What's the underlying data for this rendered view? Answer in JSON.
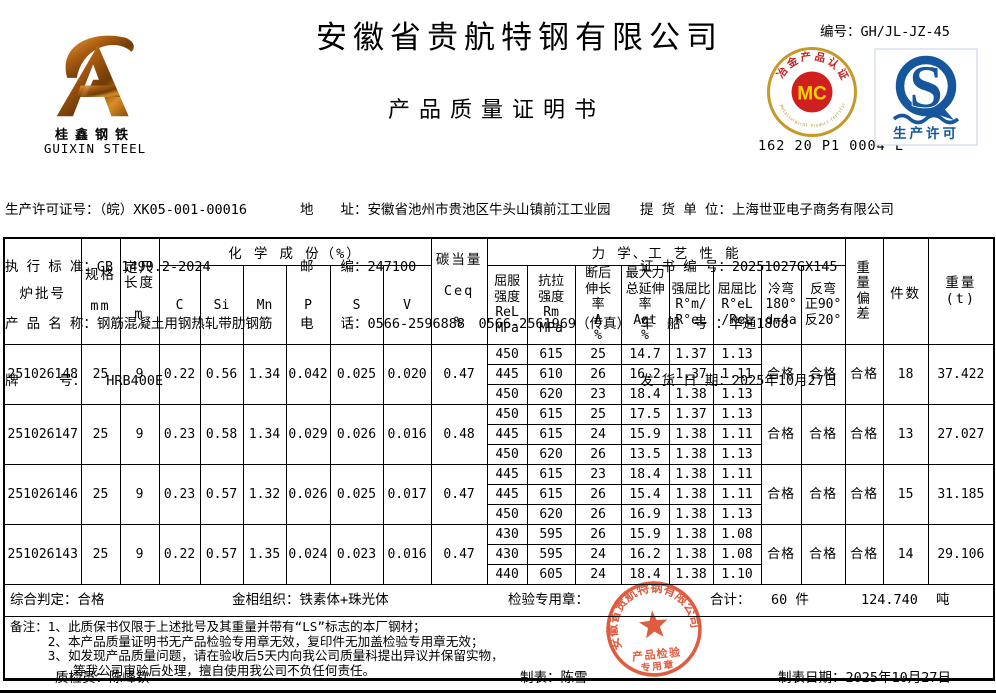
{
  "doc": {
    "company": "安徽省贵航特钢有限公司",
    "title": "产品质量证明书",
    "no_label": "编号：",
    "no_value": "GH/JL-JZ-45"
  },
  "logo": {
    "cn": "桂鑫钢铁",
    "en": "GUIXIN STEEL"
  },
  "mc_badge": {
    "letters": "MC",
    "top_text": "冶金产品认证",
    "bottom_text": "Metallurgical Product Certification",
    "serial": "162 20 P1 0004 L",
    "ring_color": "#c59a28",
    "center_color": "#cf1f1f",
    "letters_color": "#ffd300"
  },
  "qs_badge": {
    "letter": "S",
    "label": "生产许可",
    "color": "#15569c"
  },
  "info": {
    "col1": [
      "生产许可证号：（皖）XK05-001-00016",
      "执 行 标 准：GB 1499.2-2024",
      "产 品 名 称：钢筋混凝土用钢热轧带肋钢筋",
      "牌　　　号：　　HRB400E"
    ],
    "col2": [
      "地　　址：安徽省池州市贵池区牛头山镇前江工业园",
      "邮　　编：247100",
      "电　　话：0566-2596888　0566-2561969（传真）"
    ],
    "col3": [
      "提 货 单 位：上海世亚电子商务有限公司",
      "证 书 编 号：20251027GX145",
      "车　船　号 ：华通1808",
      "发 货 日 期：2025年10月27日"
    ]
  },
  "table": {
    "header": {
      "batch": "炉批号",
      "spec": "规格\n\nmm",
      "length": "定尺\n长度\n\nm",
      "chem_group": "化 学 成 份（%）",
      "chem_cols": [
        "C",
        "Si",
        "Mn",
        "P",
        "S",
        "V"
      ],
      "ceq": "碳当量\n\nCeq\n\n%",
      "mech_group": "力 学、工 艺 性 能",
      "mech_cols": [
        "屈服\n强度\nReL\nMPa",
        "抗拉\n强度\nRm\nMPa",
        "断后\n伸长\n率\nA\n%",
        "最大力\n总延伸\n率\nAgt\n%",
        "强屈比\nR°m/\nR°eL",
        "屈屈比\nR°eL\n/ReL",
        "冷弯\n180°\nd=4a",
        "反弯\n正90°\n反20°"
      ],
      "weight_dev": "重\n量\n偏\n差",
      "pieces": "件数",
      "weight": "重量\n(t)"
    },
    "rows": [
      {
        "batch": "251026148",
        "spec": "25",
        "len": "9",
        "chem": [
          "0.22",
          "0.56",
          "1.34",
          "0.042",
          "0.025",
          "0.020"
        ],
        "ceq": "0.47",
        "mech": [
          [
            "450",
            "615",
            "25",
            "14.7",
            "1.37",
            "1.13"
          ],
          [
            "445",
            "610",
            "26",
            "16.2",
            "1.37",
            "1.11"
          ],
          [
            "450",
            "620",
            "23",
            "18.4",
            "1.38",
            "1.13"
          ]
        ],
        "cold_bend": "合格",
        "rebend": "合格",
        "weight_dev": "合格",
        "pieces": "18",
        "weight": "37.422"
      },
      {
        "batch": "251026147",
        "spec": "25",
        "len": "9",
        "chem": [
          "0.23",
          "0.58",
          "1.34",
          "0.029",
          "0.026",
          "0.016"
        ],
        "ceq": "0.48",
        "mech": [
          [
            "450",
            "615",
            "25",
            "17.5",
            "1.37",
            "1.13"
          ],
          [
            "445",
            "615",
            "24",
            "15.9",
            "1.38",
            "1.11"
          ],
          [
            "450",
            "620",
            "26",
            "13.5",
            "1.38",
            "1.13"
          ]
        ],
        "cold_bend": "合格",
        "rebend": "合格",
        "weight_dev": "合格",
        "pieces": "13",
        "weight": "27.027"
      },
      {
        "batch": "251026146",
        "spec": "25",
        "len": "9",
        "chem": [
          "0.23",
          "0.57",
          "1.32",
          "0.026",
          "0.025",
          "0.017"
        ],
        "ceq": "0.47",
        "mech": [
          [
            "445",
            "615",
            "23",
            "18.4",
            "1.38",
            "1.11"
          ],
          [
            "445",
            "615",
            "26",
            "15.4",
            "1.38",
            "1.11"
          ],
          [
            "450",
            "620",
            "26",
            "16.9",
            "1.38",
            "1.13"
          ]
        ],
        "cold_bend": "合格",
        "rebend": "合格",
        "weight_dev": "合格",
        "pieces": "15",
        "weight": "31.185"
      },
      {
        "batch": "251026143",
        "spec": "25",
        "len": "9",
        "chem": [
          "0.22",
          "0.57",
          "1.35",
          "0.024",
          "0.023",
          "0.016"
        ],
        "ceq": "0.47",
        "mech": [
          [
            "430",
            "595",
            "26",
            "15.9",
            "1.38",
            "1.08"
          ],
          [
            "430",
            "595",
            "24",
            "16.2",
            "1.38",
            "1.08"
          ],
          [
            "440",
            "605",
            "24",
            "18.4",
            "1.38",
            "1.10"
          ]
        ],
        "cold_bend": "合格",
        "rebend": "合格",
        "weight_dev": "合格",
        "pieces": "14",
        "weight": "29.106"
      }
    ],
    "summary": {
      "verdict": "综合判定：合格",
      "structure": "金相组织：铁素体+珠光体",
      "seal_label": "检验专用章：",
      "total_label": "合计：",
      "total_pieces": "60 件",
      "total_weight": "124.740",
      "total_unit": "吨"
    }
  },
  "remarks": {
    "label": "备注：",
    "lines": [
      "1、此质保书仅限于上述批号及其重量并带有“LS”标志的本厂钢材；",
      "2、本产品质量证明书无产品检验专用章无效，复印件无加盖检验专用章无效；",
      "3、如发现产品质量问题，请在验收后5天内向我公司质量科提出异议并保留实物，",
      "　　等我公司审验后处理，擅自使用我公司不负任何责任。"
    ]
  },
  "footer": {
    "inspector_label": "质检员：",
    "inspector": "陈峰钦",
    "preparer_label": "制表：",
    "preparer": "陈雪",
    "date_label": "制表日期：",
    "date": "2025年10月27日"
  },
  "stamp": {
    "company": "安徽省贵航特钢有限公司",
    "line1": "产品检验",
    "line2": "专用章",
    "color": "#dc4a2b"
  }
}
